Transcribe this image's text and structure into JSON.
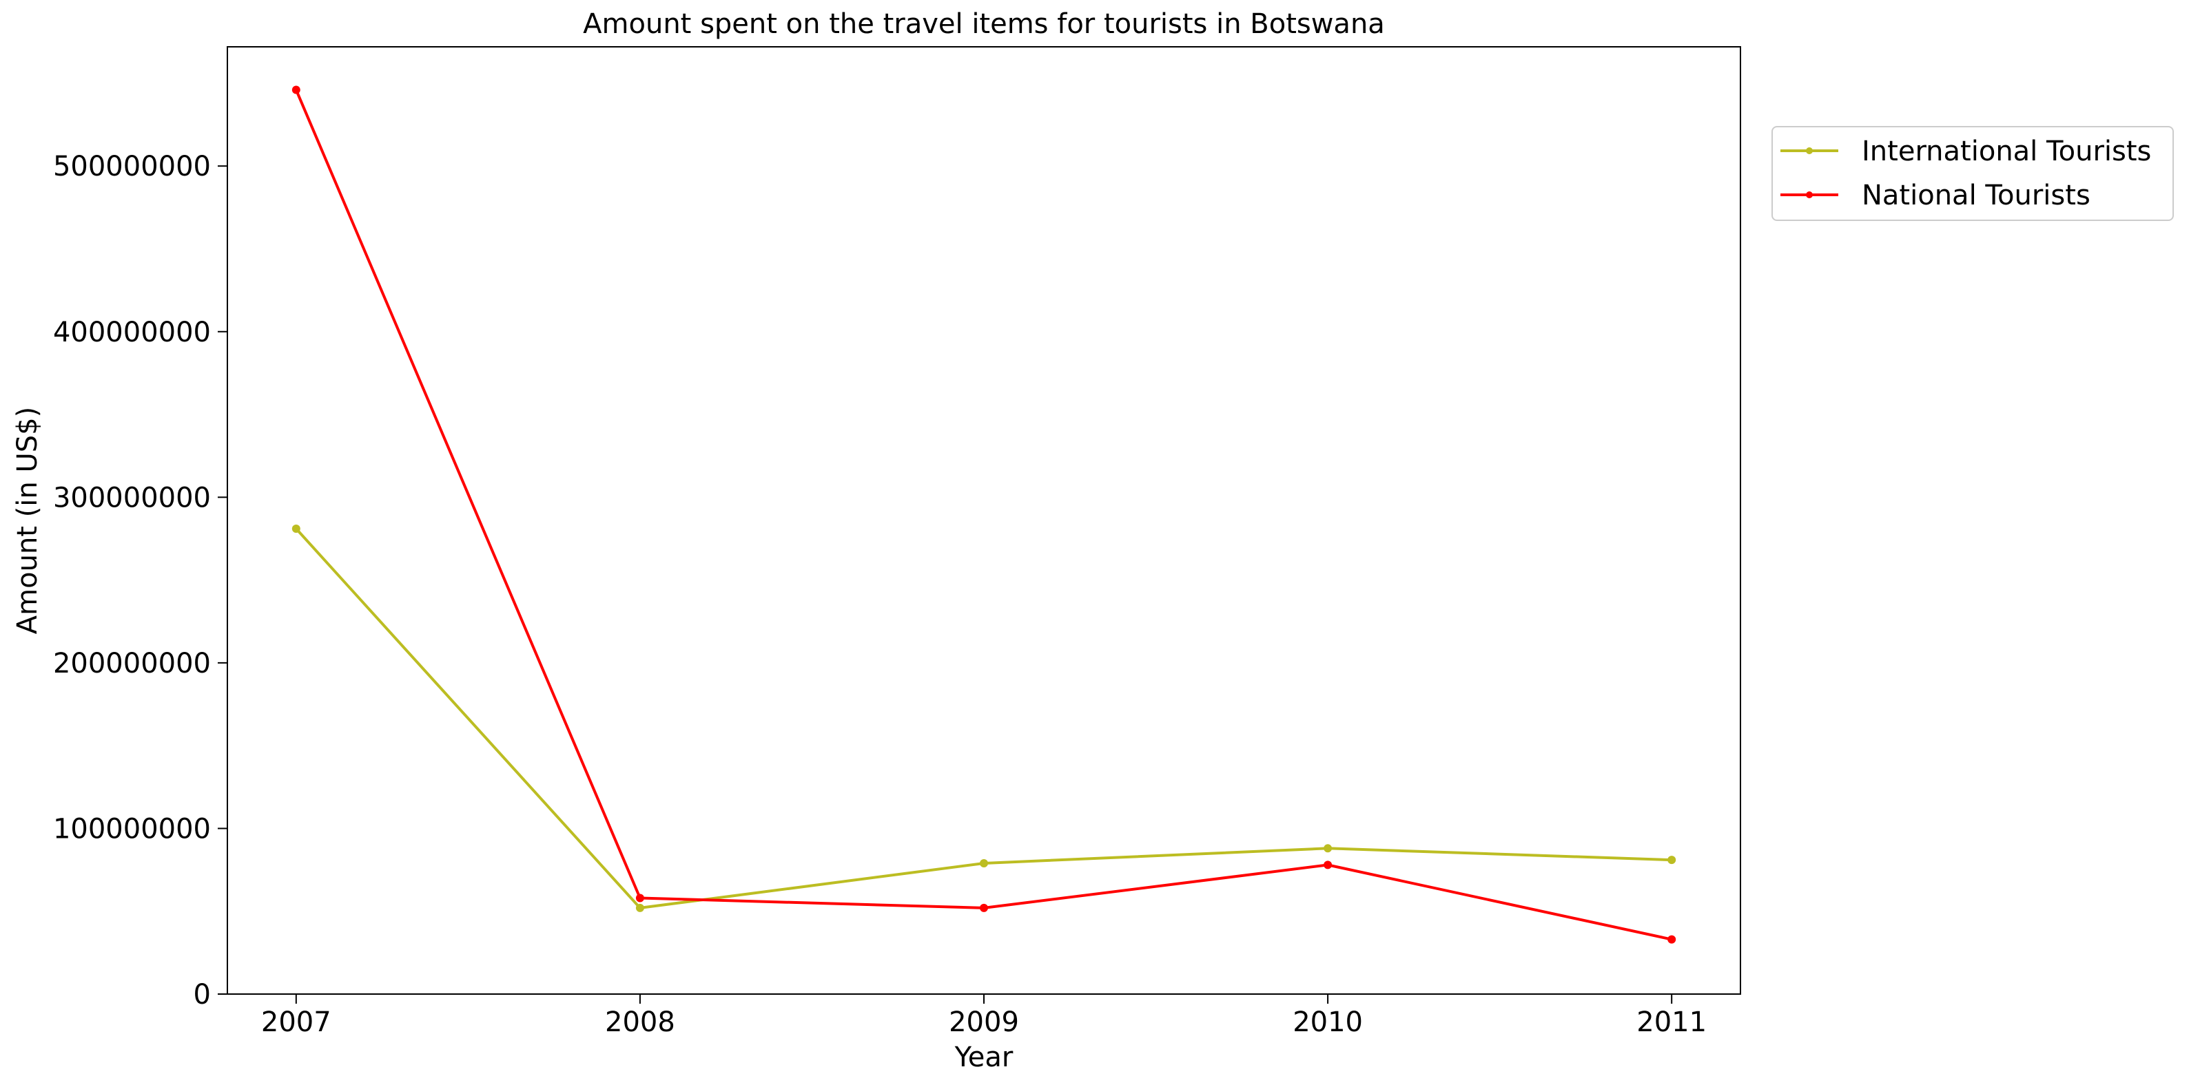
{
  "chart_data": {
    "type": "line",
    "title": "Amount spent on the travel items for tourists in Botswana",
    "xlabel": "Year",
    "ylabel": "Amount (in US$)",
    "x": [
      2007,
      2008,
      2009,
      2010,
      2011
    ],
    "x_tick_labels": [
      "2007",
      "2008",
      "2009",
      "2010",
      "2011"
    ],
    "xlim": [
      2006.8,
      2011.2
    ],
    "ylim": [
      0,
      572000000
    ],
    "y_ticks": [
      0,
      100000000,
      200000000,
      300000000,
      400000000,
      500000000
    ],
    "y_tick_labels": [
      "0",
      "100000000",
      "200000000",
      "300000000",
      "400000000",
      "500000000"
    ],
    "grid": false,
    "legend_position": "outside-top-right",
    "series": [
      {
        "name": "International Tourists",
        "color": "#bcbd22",
        "values": [
          281000000,
          52000000,
          79000000,
          88000000,
          81000000
        ]
      },
      {
        "name": "National Tourists",
        "color": "#ff0000",
        "values": [
          546000000,
          58000000,
          52000000,
          78000000,
          33000000
        ]
      }
    ]
  }
}
